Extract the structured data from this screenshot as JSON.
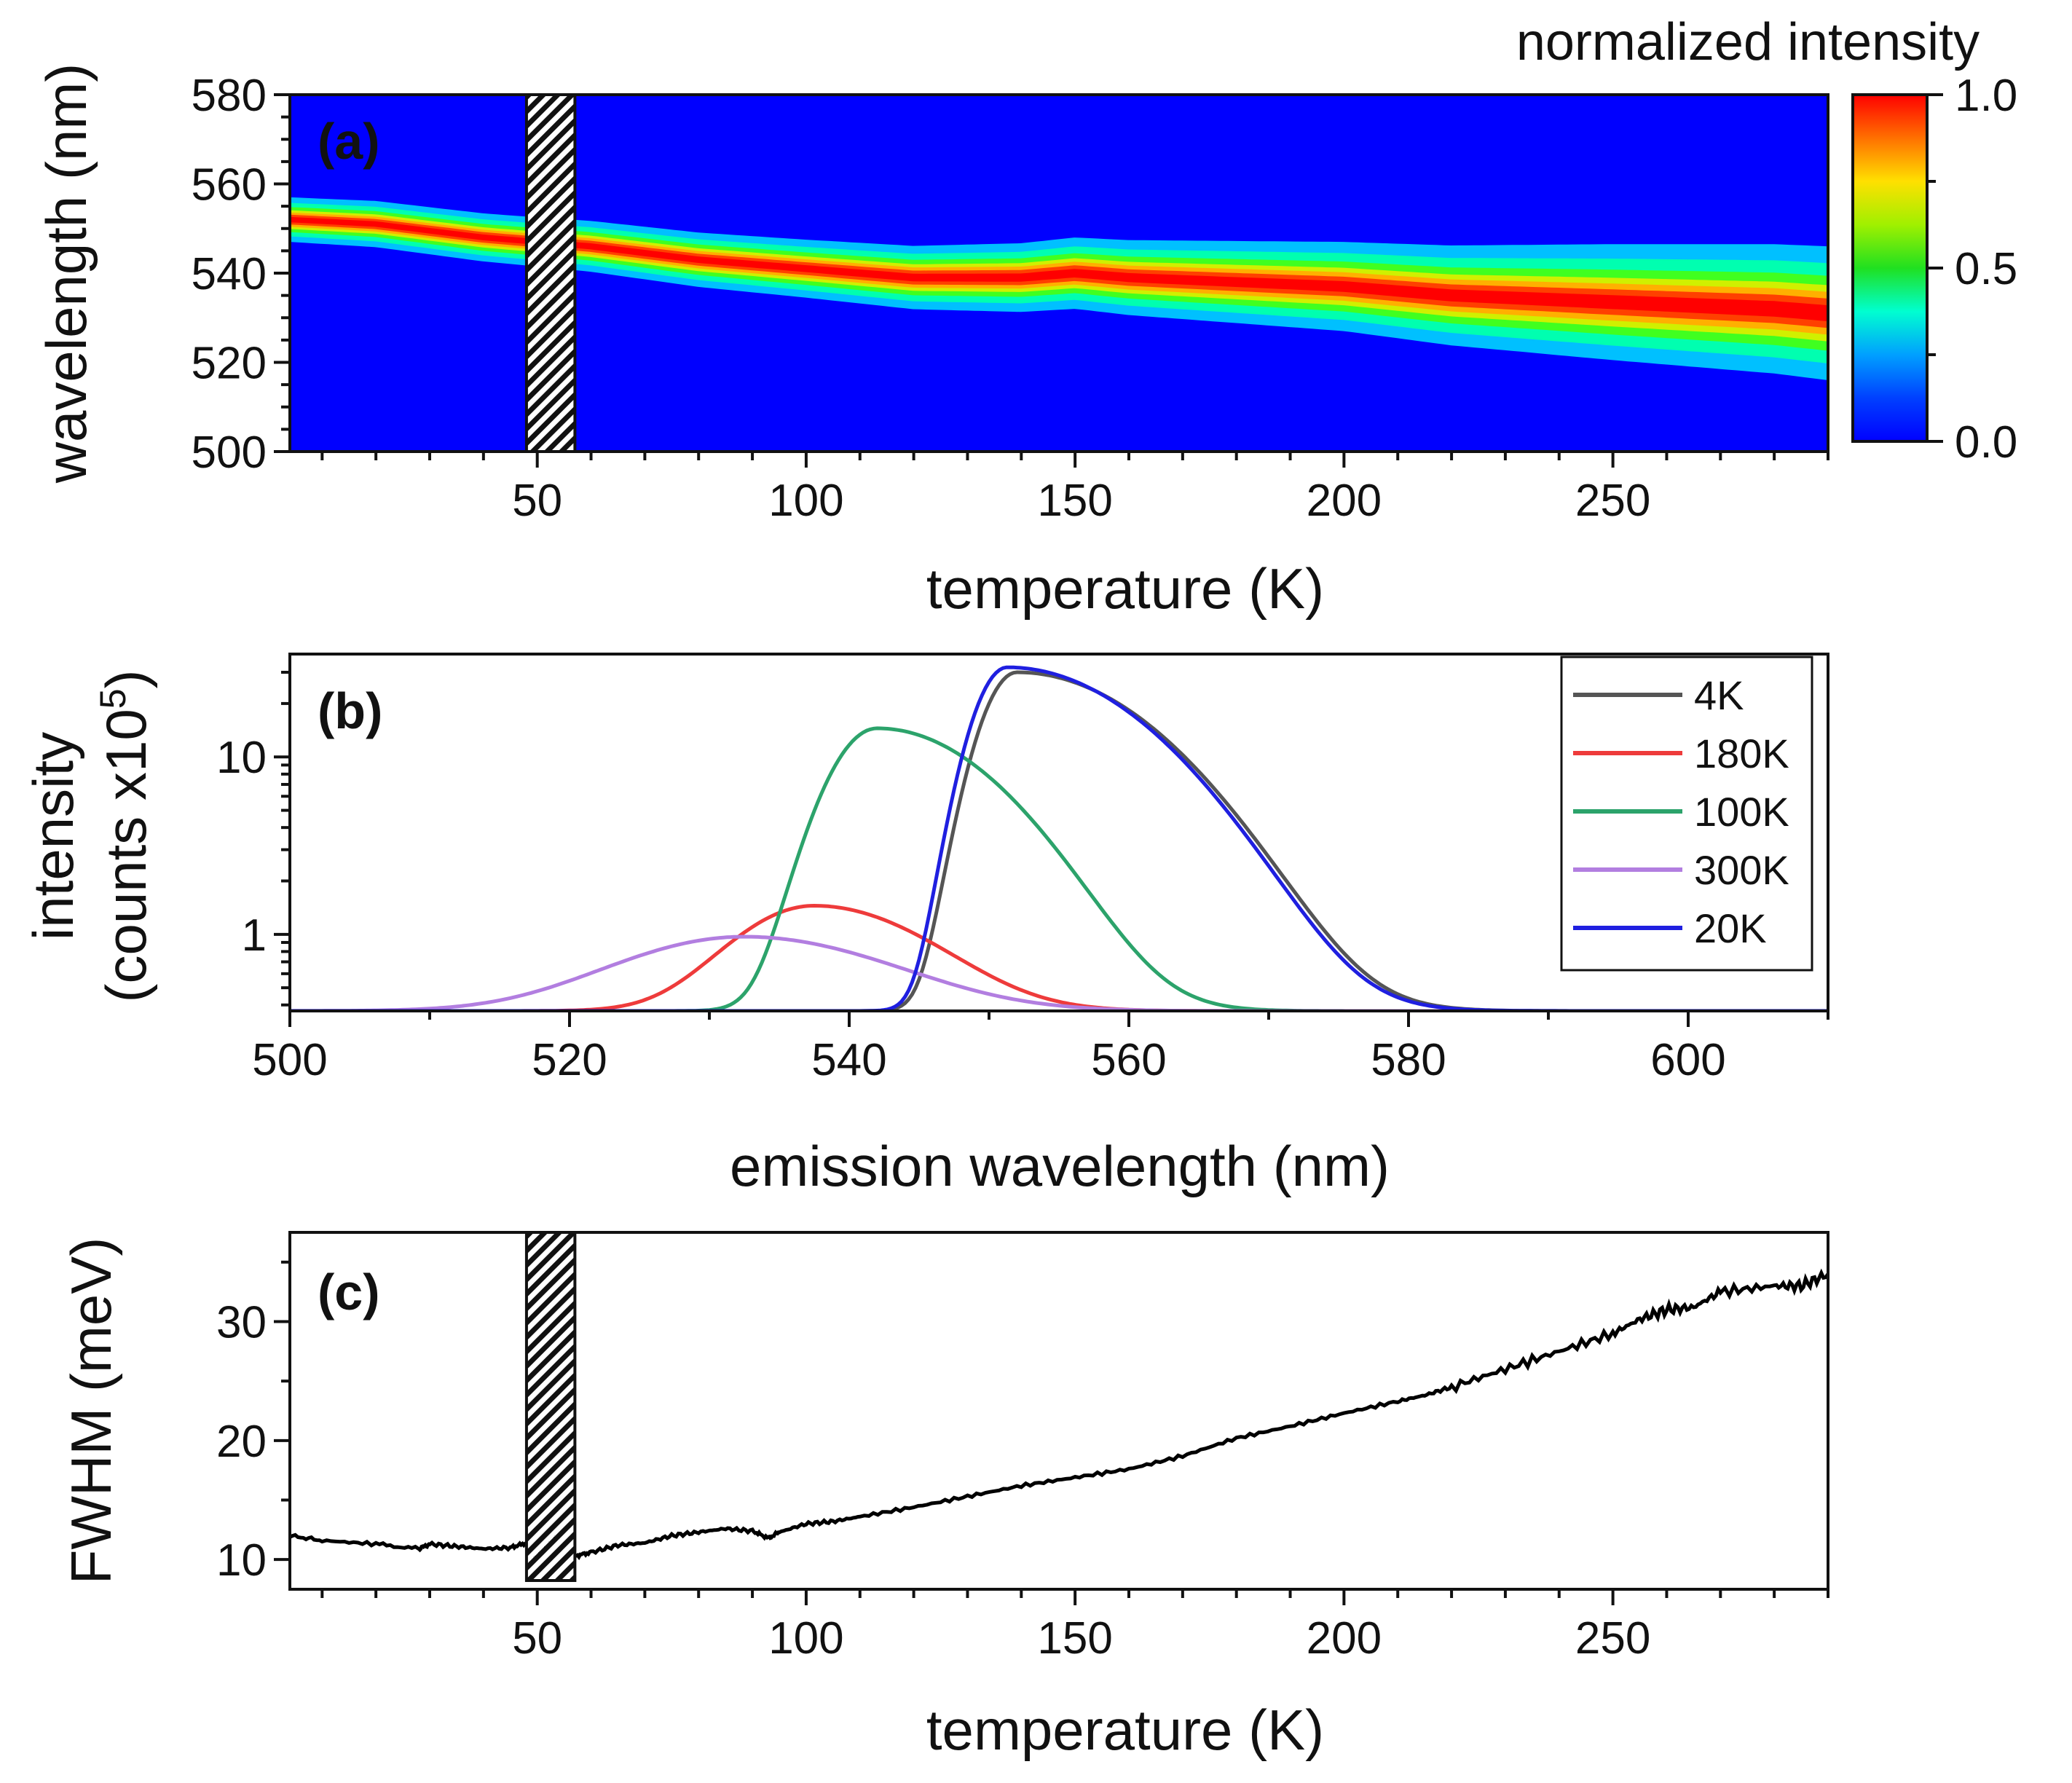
{
  "chart_data": [
    {
      "panel": "a",
      "type": "heatmap",
      "panel_label": "(a)",
      "xlabel": "temperature (K)",
      "ylabel": "wavelength (nm)",
      "xlim": [
        4,
        290
      ],
      "ylim": [
        500,
        580
      ],
      "xticks": [
        50,
        100,
        150,
        200,
        250
      ],
      "yticks": [
        500,
        520,
        540,
        560,
        580
      ],
      "colorbar": {
        "title": "normalized intensity",
        "range": [
          0.0,
          1.0
        ],
        "ticks": [
          "0.0",
          "0.5",
          "1.0"
        ],
        "tick_values": [
          0.0,
          0.5,
          1.0
        ]
      },
      "hatched_gap": [
        48,
        57
      ],
      "peak_center": {
        "temperature": [
          4,
          20,
          40,
          60,
          80,
          100,
          120,
          140,
          150,
          160,
          180,
          200,
          220,
          240,
          260,
          280,
          290
        ],
        "wavelength": [
          552,
          551,
          548,
          546,
          543,
          541,
          539,
          539,
          540,
          539,
          538,
          537,
          535,
          534,
          533,
          532,
          531
        ]
      },
      "peak_width_nm": {
        "temperature": [
          4,
          50,
          100,
          150,
          200,
          250,
          290
        ],
        "width": [
          5,
          5.5,
          6.5,
          8,
          10,
          13,
          15
        ]
      }
    },
    {
      "panel": "b",
      "type": "line",
      "panel_label": "(b)",
      "xlabel": "emission wavelength (nm)",
      "ylabel_line1": "intensity",
      "ylabel_line2": "(counts x10",
      "ylabel_sup": "5",
      "ylabel_close": ")",
      "xlim": [
        500,
        610
      ],
      "ylim": [
        0.37,
        38
      ],
      "yscale": "log",
      "xticks": [
        500,
        520,
        540,
        560,
        580,
        600
      ],
      "yticks": [
        1,
        10
      ],
      "ytick_labels": [
        "1",
        "10"
      ],
      "baseline": 0.37,
      "series": [
        {
          "name": "4K",
          "color": "#555555",
          "peak_x": 552.0,
          "peak_y": 30.0,
          "sigma_left": 2.2,
          "sigma_right": 8.0,
          "lw": 5
        },
        {
          "name": "180K",
          "color": "#ee3b3b",
          "peak_x": 537.5,
          "peak_y": 1.45,
          "sigma_left": 5.0,
          "sigma_right": 7.0,
          "lw": 5
        },
        {
          "name": "100K",
          "color": "#2ca36b",
          "peak_x": 542.0,
          "peak_y": 14.5,
          "sigma_left": 3.0,
          "sigma_right": 7.0,
          "lw": 5
        },
        {
          "name": "300K",
          "color": "#b27ee0",
          "peak_x": 532.5,
          "peak_y": 0.97,
          "sigma_left": 8.0,
          "sigma_right": 9.0,
          "lw": 5
        },
        {
          "name": "20K",
          "color": "#1f1fe0",
          "peak_x": 551.3,
          "peak_y": 32.0,
          "sigma_left": 2.1,
          "sigma_right": 8.0,
          "lw": 5
        }
      ]
    },
    {
      "panel": "c",
      "type": "line",
      "panel_label": "(c)",
      "xlabel": "temperature (K)",
      "ylabel": "FWHM (meV)",
      "xlim": [
        4,
        290
      ],
      "ylim": [
        7.5,
        37.5
      ],
      "xticks": [
        50,
        100,
        150,
        200,
        250
      ],
      "yticks": [
        10,
        20,
        30
      ],
      "hatched_gap": [
        48,
        57
      ],
      "series": [
        {
          "name": "FWHM",
          "color": "#000000",
          "x": [
            4,
            10,
            20,
            28,
            30,
            35,
            40,
            45,
            48
          ],
          "y": [
            12.0,
            11.6,
            11.3,
            10.9,
            11.3,
            11.1,
            10.9,
            11.0,
            11.4
          ]
        },
        {
          "name": "FWHM",
          "color": "#000000",
          "x": [
            57,
            60,
            65,
            70,
            75,
            80,
            85,
            90,
            93,
            95,
            100,
            105,
            110,
            120,
            130,
            140,
            150,
            160,
            170,
            180,
            190,
            200,
            210,
            215,
            220,
            230,
            240,
            250,
            255,
            260,
            265,
            270,
            280,
            285,
            290
          ],
          "y": [
            10.3,
            10.6,
            11.2,
            11.4,
            12.0,
            12.3,
            12.6,
            12.4,
            11.8,
            12.3,
            13.0,
            13.2,
            13.6,
            14.4,
            15.3,
            16.2,
            16.9,
            17.6,
            18.7,
            20.2,
            21.2,
            22.3,
            23.3,
            23.8,
            24.5,
            26.0,
            27.5,
            29.0,
            30.2,
            31.0,
            31.2,
            32.5,
            33.0,
            33.0,
            34.0
          ]
        }
      ]
    }
  ]
}
